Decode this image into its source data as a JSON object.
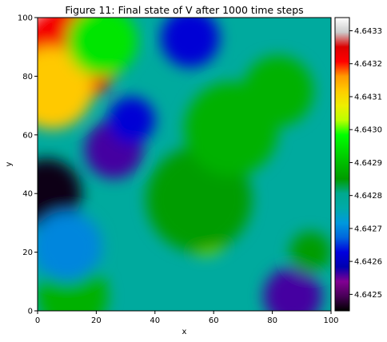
{
  "chart_data": {
    "type": "heatmap",
    "title": "Figure 11: Final state of V after 1000 time steps",
    "xlabel": "x",
    "ylabel": "y",
    "xlim": [
      0,
      100
    ],
    "ylim": [
      0,
      100
    ],
    "x_ticks": [
      "0",
      "20",
      "40",
      "60",
      "80",
      "100"
    ],
    "y_ticks": [
      "0",
      "20",
      "40",
      "60",
      "80",
      "100"
    ],
    "grid": false,
    "colormap": "nipy_spectral",
    "colorbar": {
      "range": [
        4.64245,
        4.64334
      ],
      "ticks": [
        "4.6425",
        "4.6426",
        "4.6427",
        "4.6428",
        "4.6429",
        "4.6430",
        "4.6431",
        "4.6432",
        "4.6433"
      ]
    },
    "blobs": [
      {
        "x": 3,
        "y": 98,
        "r": 10,
        "value": 4.64334
      },
      {
        "x": 10,
        "y": 88,
        "r": 18,
        "value": 4.64322
      },
      {
        "x": 5,
        "y": 76,
        "r": 14,
        "value": 4.64312
      },
      {
        "x": 22,
        "y": 92,
        "r": 12,
        "value": 4.64295
      },
      {
        "x": 3,
        "y": 40,
        "r": 12,
        "value": 4.64246
      },
      {
        "x": 26,
        "y": 55,
        "r": 10,
        "value": 4.64256
      },
      {
        "x": 32,
        "y": 65,
        "r": 8,
        "value": 4.64262
      },
      {
        "x": 52,
        "y": 93,
        "r": 10,
        "value": 4.64262
      },
      {
        "x": 87,
        "y": 5,
        "r": 10,
        "value": 4.64256
      },
      {
        "x": 57,
        "y": 28,
        "r": 9,
        "value": 4.64302
      },
      {
        "x": 61,
        "y": 48,
        "r": 7,
        "value": 4.64298
      },
      {
        "x": 55,
        "y": 38,
        "r": 18,
        "value": 4.64285
      },
      {
        "x": 66,
        "y": 62,
        "r": 16,
        "value": 4.64288
      },
      {
        "x": 82,
        "y": 75,
        "r": 12,
        "value": 4.64288
      },
      {
        "x": 93,
        "y": 20,
        "r": 7,
        "value": 4.64285
      },
      {
        "x": 12,
        "y": 5,
        "r": 12,
        "value": 4.64288
      },
      {
        "x": 10,
        "y": 22,
        "r": 12,
        "value": 4.6427
      }
    ]
  }
}
